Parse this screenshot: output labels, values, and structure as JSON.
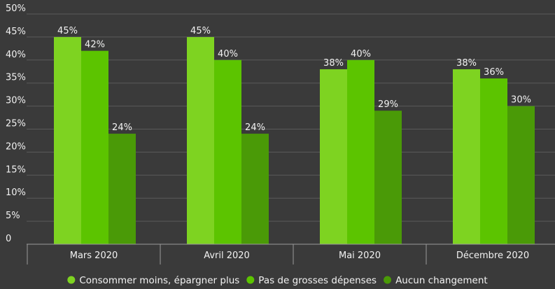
{
  "chart_data": {
    "type": "bar",
    "title": "",
    "xlabel": "",
    "ylabel": "",
    "categories": [
      "Mars 2020",
      "Avril 2020",
      "Mai 2020",
      "Décembre 2020"
    ],
    "series": [
      {
        "name": "Consommer moins, épargner plus",
        "color": "#7ed321",
        "values": [
          45,
          45,
          38,
          38
        ],
        "labels": [
          "45%",
          "45%",
          "38%",
          "38%"
        ]
      },
      {
        "name": "Pas de grosses dépenses",
        "color": "#5cc400",
        "values": [
          42,
          40,
          40,
          36
        ],
        "labels": [
          "42%",
          "40%",
          "40%",
          "36%"
        ]
      },
      {
        "name": "Aucun changement",
        "color": "#4a9a07",
        "values": [
          24,
          24,
          29,
          30
        ],
        "labels": [
          "24%",
          "24%",
          "29%",
          "30%"
        ]
      }
    ],
    "ylim": [
      0,
      50
    ],
    "yticks": [
      0,
      5,
      10,
      15,
      20,
      25,
      30,
      35,
      40,
      45,
      50
    ],
    "ytick_labels": [
      "0",
      "5%",
      "10%",
      "15%",
      "20%",
      "25%",
      "30%",
      "35%",
      "40%",
      "45%",
      "50%"
    ],
    "grid": true,
    "legend_position": "bottom"
  },
  "colors": {
    "background": "#3a3a3a",
    "grid": "#5a5a5a",
    "text": "#f2f2f2",
    "axis": "#9a9a9a"
  }
}
